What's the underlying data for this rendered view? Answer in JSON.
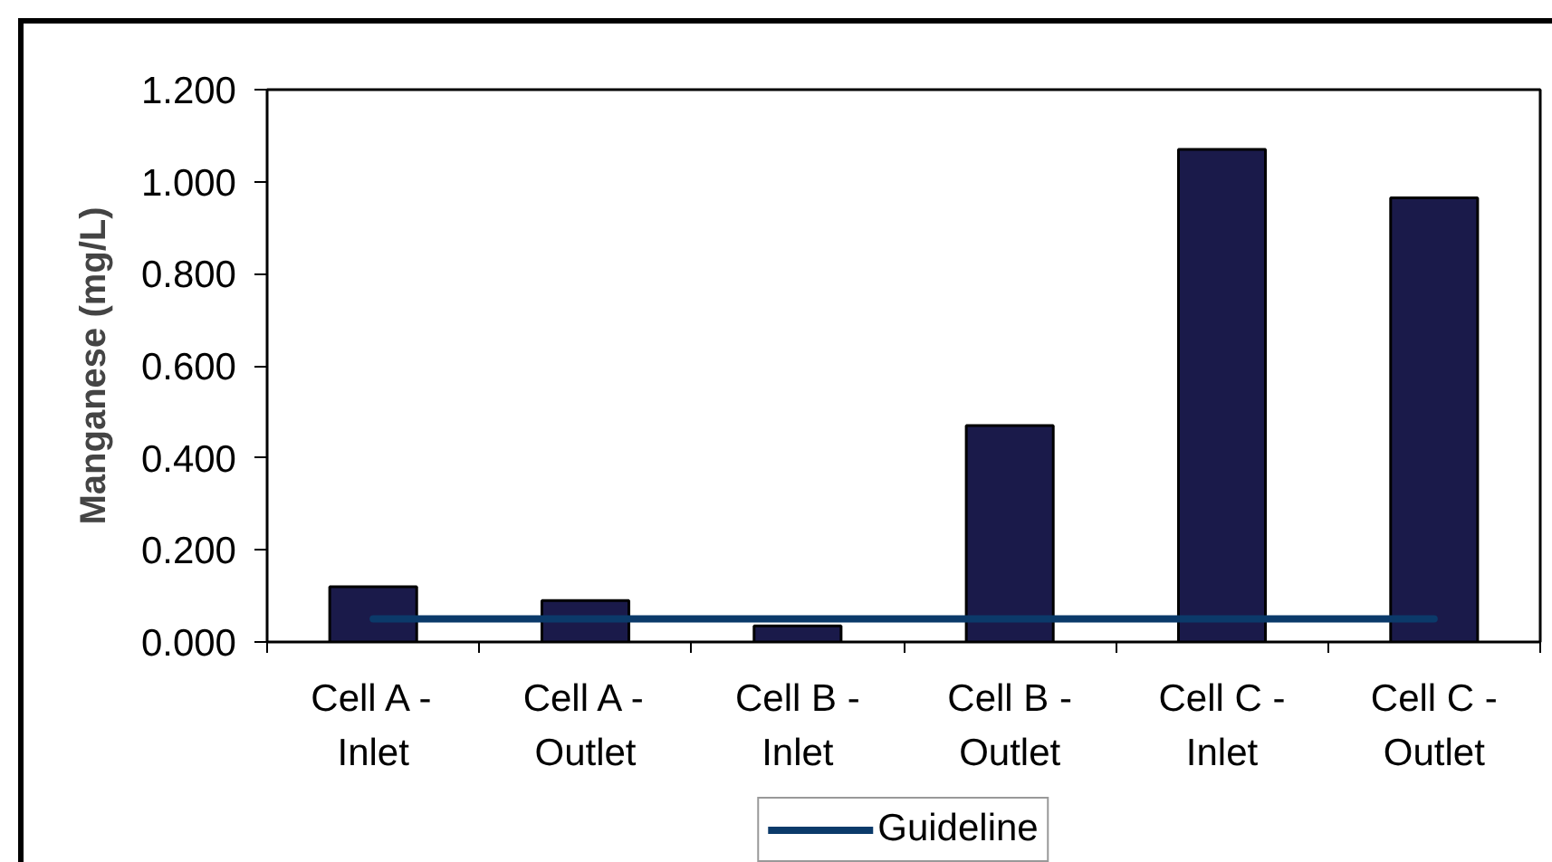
{
  "chart_data": {
    "type": "bar",
    "ylabel": "Manganese (mg/L)",
    "categories": [
      "Cell A - Inlet",
      "Cell A - Outlet",
      "Cell B - Inlet",
      "Cell B - Outlet",
      "Cell C - Inlet",
      "Cell C - Outlet"
    ],
    "series": [
      {
        "color": "#1a1a4a",
        "values": [
          0.12,
          0.09,
          0.035,
          0.47,
          1.07,
          0.965
        ]
      },
      {
        "type": "line",
        "name": "Guideline",
        "color": "#0b3a6a",
        "values": [
          0.05,
          0.05,
          0.05,
          0.05,
          0.05,
          0.05
        ]
      }
    ],
    "ylim": [
      0,
      1.2
    ],
    "yticks": [
      {
        "value": 0,
        "label": "0.000"
      },
      {
        "value": 0.2,
        "label": "0.200"
      },
      {
        "value": 0.4,
        "label": "0.400"
      },
      {
        "value": 0.6,
        "label": "0.600"
      },
      {
        "value": 0.8,
        "label": "0.800"
      },
      {
        "value": 1.0,
        "label": "1.000"
      },
      {
        "value": 1.2,
        "label": "1.200"
      }
    ],
    "legend": "bottom",
    "line_style": "solid"
  }
}
